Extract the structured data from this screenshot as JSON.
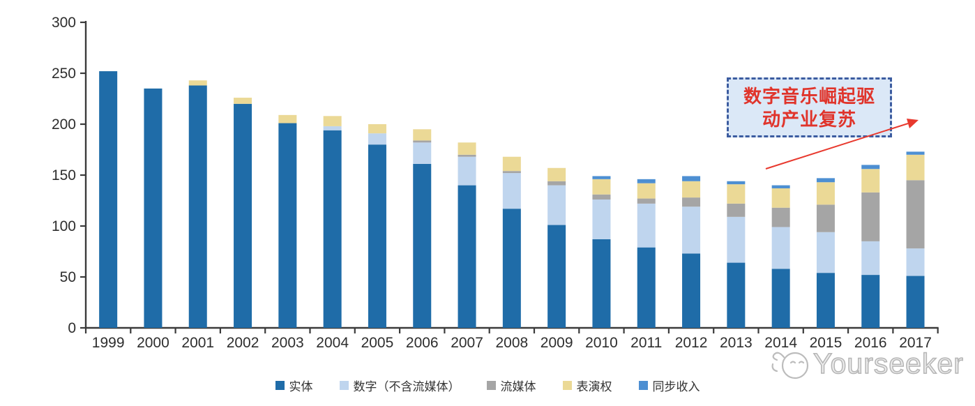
{
  "chart_data": {
    "type": "bar",
    "stacked": true,
    "title": "",
    "xlabel": "",
    "ylabel": "",
    "categories": [
      "1999",
      "2000",
      "2001",
      "2002",
      "2003",
      "2004",
      "2005",
      "2006",
      "2007",
      "2008",
      "2009",
      "2010",
      "2011",
      "2012",
      "2013",
      "2014",
      "2015",
      "2016",
      "2017"
    ],
    "series": [
      {
        "name": "实体",
        "color": "#1F6CA8",
        "values": [
          252,
          235,
          238,
          220,
          201,
          194,
          180,
          161,
          140,
          117,
          101,
          87,
          79,
          73,
          64,
          58,
          54,
          52,
          51
        ]
      },
      {
        "name": "数字（不含流媒体）",
        "color": "#BFD5EE",
        "values": [
          0,
          0,
          0,
          0,
          0,
          4,
          11,
          21,
          28,
          35,
          39,
          39,
          43,
          46,
          45,
          41,
          40,
          33,
          27
        ]
      },
      {
        "name": "流媒体",
        "color": "#A5A5A5",
        "values": [
          0,
          0,
          0,
          0,
          0,
          0,
          0,
          2,
          2,
          2,
          4,
          5,
          5,
          9,
          13,
          19,
          27,
          48,
          67
        ]
      },
      {
        "name": "表演权",
        "color": "#EBD996",
        "values": [
          0,
          0,
          5,
          6,
          8,
          10,
          9,
          11,
          12,
          14,
          13,
          15,
          15,
          16,
          19,
          19,
          22,
          23,
          25
        ]
      },
      {
        "name": "同步收入",
        "color": "#4D8FD2",
        "values": [
          0,
          0,
          0,
          0,
          0,
          0,
          0,
          0,
          0,
          0,
          0,
          3,
          4,
          5,
          3,
          3,
          4,
          4,
          3
        ]
      }
    ],
    "ylim": [
      0,
      300
    ],
    "y_ticks": [
      0,
      50,
      100,
      150,
      200,
      250,
      300
    ],
    "grid": false,
    "legend_position": "bottom"
  },
  "annotation": {
    "line1": "数字音乐崛起驱",
    "line2": "动产业复苏",
    "text_color": "#E0342B",
    "border_color": "#3C5CA0",
    "fill_color": "#DBE8F7",
    "arrow_color": "#E8392E"
  },
  "watermark": {
    "text": "Yourseeker"
  }
}
